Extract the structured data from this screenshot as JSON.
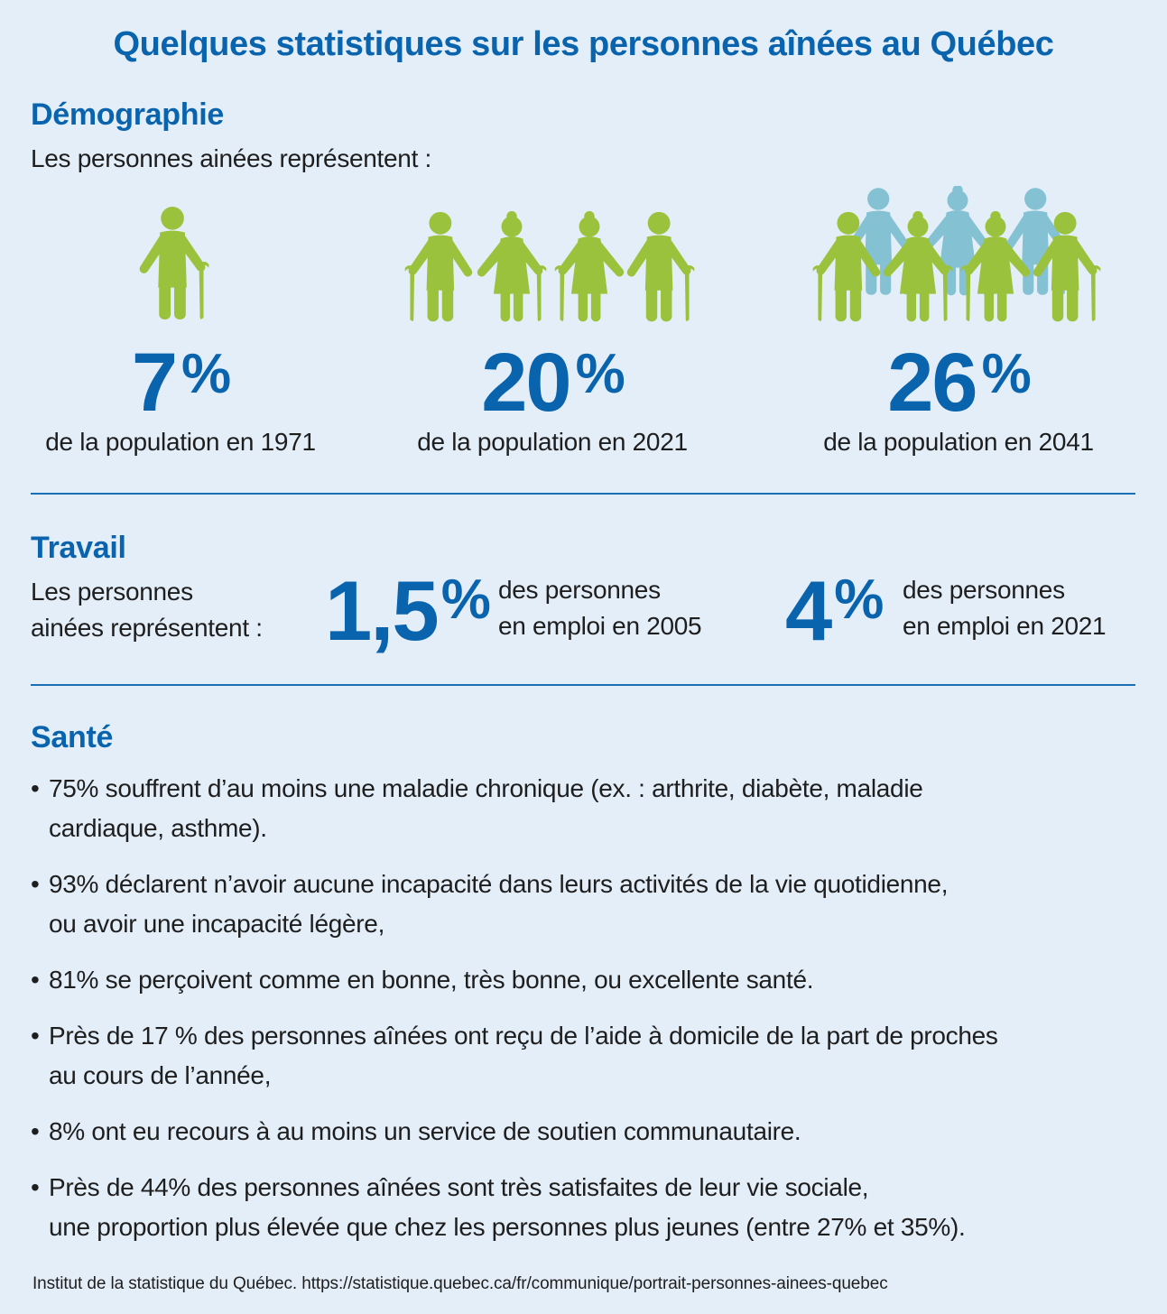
{
  "title": "Quelques statistiques sur les personnes aînées au Québec",
  "colors": {
    "background": "#e3eef9",
    "accent_blue": "#0a64ad",
    "figure_green": "#9bc23c",
    "figure_teal": "#84c1d3",
    "text": "#1e1e1e"
  },
  "demographie": {
    "heading": "Démographie",
    "intro": "Les personnes ainées représentent :",
    "stats": [
      {
        "value": "7",
        "unit": "%",
        "caption": "de la population en 1971",
        "icon": "one-elderly-person-icon"
      },
      {
        "value": "20",
        "unit": "%",
        "caption": "de la population en 2021",
        "icon": "four-elderly-people-icon"
      },
      {
        "value": "26",
        "unit": "%",
        "caption": "de la population en 2041",
        "icon": "seven-elderly-people-icon"
      }
    ]
  },
  "travail": {
    "heading": "Travail",
    "intro_line1": "Les personnes",
    "intro_line2": "ainées représentent :",
    "stats": [
      {
        "value": "1,5",
        "unit": "%",
        "caption_line1": "des personnes",
        "caption_line2": "en emploi en 2005"
      },
      {
        "value": "4",
        "unit": "%",
        "caption_line1": "des personnes",
        "caption_line2": "en emploi en 2021"
      }
    ]
  },
  "sante": {
    "heading": "Santé",
    "items": [
      {
        "line1": "75% souffrent d’au moins une maladie chronique (ex. : arthrite, diabète, maladie",
        "line2": "cardiaque, asthme)."
      },
      {
        "line1": "93% déclarent n’avoir aucune incapacité dans leurs activités de la vie quotidienne,",
        "line2": "ou avoir une incapacité légère,"
      },
      {
        "line1": "81% se perçoivent comme en bonne, très bonne, ou excellente santé.",
        "line2": ""
      },
      {
        "line1": "Près de 17 % des personnes aînées ont reçu de l’aide à domicile de la part de proches",
        "line2": "au cours de l’année,"
      },
      {
        "line1": "8% ont eu recours à au moins un service de soutien communautaire.",
        "line2": ""
      },
      {
        "line1": "Près de 44% des personnes aînées sont très satisfaites de leur vie sociale,",
        "line2": "une proportion plus élevée que chez les personnes plus jeunes (entre 27% et 35%)."
      }
    ]
  },
  "source": "Institut de la statistique du Québec. https://statistique.quebec.ca/fr/communique/portrait-personnes-ainees-quebec"
}
